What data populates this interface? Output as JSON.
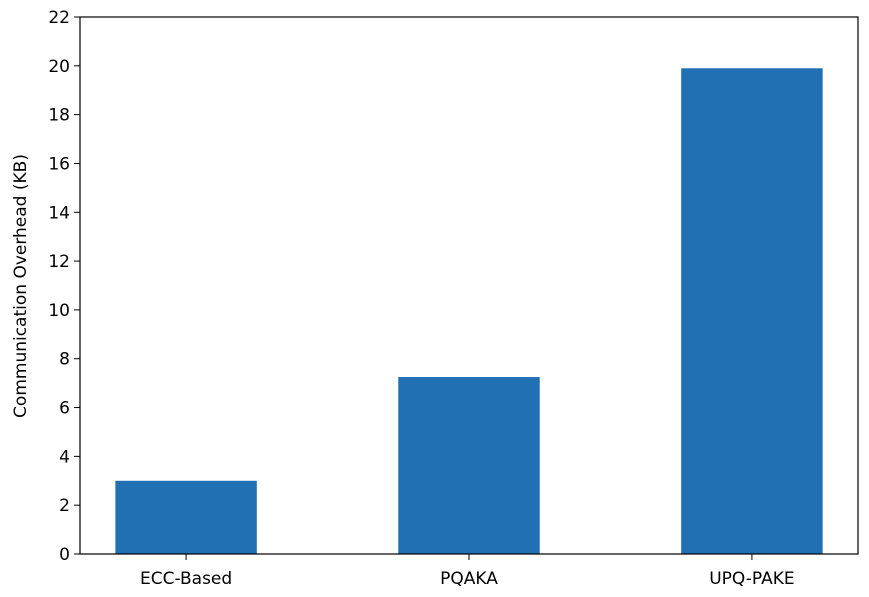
{
  "chart_data": {
    "type": "bar",
    "y_label": "Communication Overhead (KB)",
    "categories": [
      "ECC-Based",
      "PQAKA",
      "UPQ-PAKE"
    ],
    "values": [
      3.0,
      7.25,
      19.9
    ],
    "color": "#2270b4",
    "ylim": [
      0,
      22
    ],
    "yticks": [
      0,
      2,
      4,
      6,
      8,
      10,
      12,
      14,
      16,
      18,
      20,
      22
    ],
    "grid": false
  }
}
